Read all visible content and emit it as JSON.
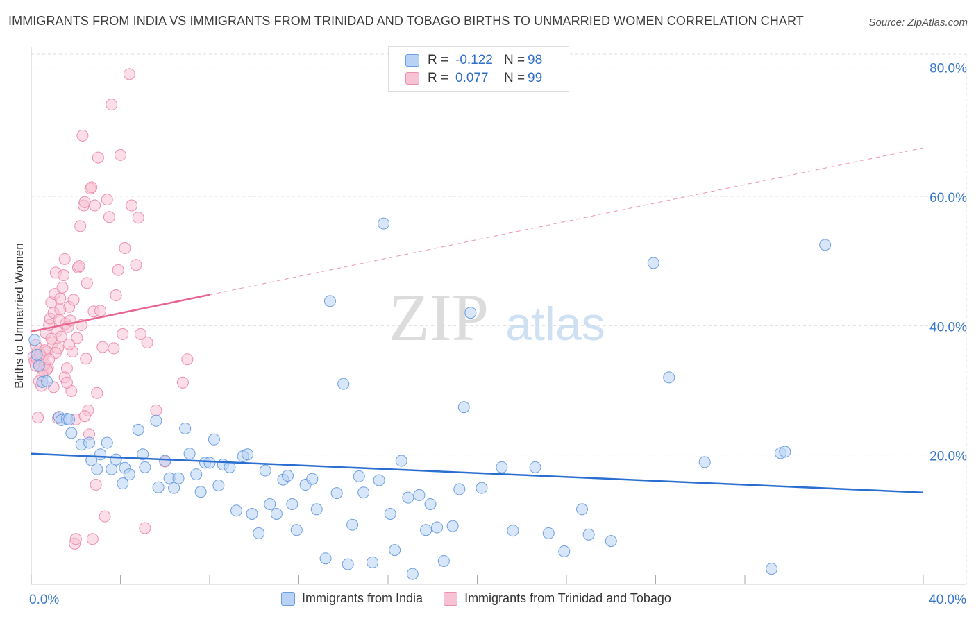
{
  "title": "IMMIGRANTS FROM INDIA VS IMMIGRANTS FROM TRINIDAD AND TOBAGO BIRTHS TO UNMARRIED WOMEN CORRELATION CHART",
  "source": "Source: ZipAtlas.com",
  "watermark": {
    "zip": "ZIP",
    "atlas": "atlas"
  },
  "legend": {
    "r_label": "R =",
    "n_label": "N =",
    "india": {
      "r": "-0.122",
      "n": "98"
    },
    "tt": {
      "r": "0.077",
      "n": "99"
    }
  },
  "colors": {
    "india_fill": "#b8d2f5",
    "india_stroke": "#6d9fe0",
    "india_line": "#2a6fd0",
    "tt_fill": "#f7c2d4",
    "tt_stroke": "#ec8fae",
    "tt_line": "#e8658f",
    "axis_text": "#3a78cc",
    "grid": "#dddddd"
  },
  "chart_data": {
    "type": "scatter",
    "title": "IMMIGRANTS FROM INDIA VS IMMIGRANTS FROM TRINIDAD AND TOBAGO BIRTHS TO UNMARRIED WOMEN CORRELATION CHART",
    "xlabel": "",
    "ylabel": "Births to Unmarried Women",
    "xlim": [
      0,
      40
    ],
    "ylim": [
      0,
      82
    ],
    "x_tick_labels": [
      {
        "v": 0,
        "label": "0.0%"
      },
      {
        "v": 40,
        "label": "40.0%"
      }
    ],
    "y_tick_labels": [
      {
        "v": 20,
        "label": "20.0%"
      },
      {
        "v": 40,
        "label": "40.0%"
      },
      {
        "v": 60,
        "label": "60.0%"
      },
      {
        "v": 80,
        "label": "80.0%"
      }
    ],
    "x_minor_ticks": [
      0,
      4,
      8,
      12,
      16,
      20,
      24,
      28,
      32,
      36,
      40
    ],
    "grid": true,
    "legend_position": "top-center",
    "series": [
      {
        "name": "Immigrants from India",
        "trend": {
          "x0": 0,
          "y0": 20.2,
          "x1": 40,
          "y1": 14.2,
          "dashed_from": null
        },
        "points": [
          [
            0.15,
            37.8
          ],
          [
            0.25,
            35.5
          ],
          [
            0.35,
            33.8
          ],
          [
            0.5,
            31.3
          ],
          [
            0.7,
            31.4
          ],
          [
            1.25,
            25.9
          ],
          [
            1.35,
            25.4
          ],
          [
            1.6,
            25.6
          ],
          [
            1.7,
            25.5
          ],
          [
            1.8,
            23.4
          ],
          [
            2.25,
            21.6
          ],
          [
            2.6,
            21.9
          ],
          [
            2.7,
            19.2
          ],
          [
            2.95,
            17.8
          ],
          [
            3.1,
            20.1
          ],
          [
            3.4,
            21.9
          ],
          [
            3.8,
            19.3
          ],
          [
            3.6,
            17.8
          ],
          [
            4.2,
            18.0
          ],
          [
            4.4,
            17.0
          ],
          [
            4.1,
            15.6
          ],
          [
            4.8,
            23.9
          ],
          [
            5.0,
            20.1
          ],
          [
            5.1,
            18.1
          ],
          [
            5.6,
            25.3
          ],
          [
            5.7,
            15.0
          ],
          [
            6.0,
            19.1
          ],
          [
            6.2,
            16.4
          ],
          [
            6.4,
            14.9
          ],
          [
            6.6,
            16.4
          ],
          [
            6.9,
            24.1
          ],
          [
            7.1,
            20.2
          ],
          [
            7.4,
            17.0
          ],
          [
            7.6,
            14.3
          ],
          [
            7.8,
            18.8
          ],
          [
            8.0,
            18.8
          ],
          [
            8.2,
            22.4
          ],
          [
            8.4,
            15.3
          ],
          [
            8.6,
            18.5
          ],
          [
            8.9,
            18.1
          ],
          [
            9.2,
            11.4
          ],
          [
            9.5,
            19.8
          ],
          [
            9.7,
            20.1
          ],
          [
            9.9,
            10.9
          ],
          [
            10.2,
            7.9
          ],
          [
            10.5,
            17.6
          ],
          [
            10.7,
            12.4
          ],
          [
            11.0,
            10.9
          ],
          [
            11.3,
            16.2
          ],
          [
            11.5,
            16.8
          ],
          [
            11.7,
            12.4
          ],
          [
            11.9,
            8.4
          ],
          [
            12.3,
            15.4
          ],
          [
            12.6,
            16.3
          ],
          [
            12.8,
            11.6
          ],
          [
            13.2,
            4.0
          ],
          [
            13.4,
            43.8
          ],
          [
            13.7,
            14.1
          ],
          [
            14.0,
            31.0
          ],
          [
            14.2,
            3.1
          ],
          [
            14.4,
            9.2
          ],
          [
            14.7,
            16.7
          ],
          [
            14.9,
            14.2
          ],
          [
            15.3,
            3.4
          ],
          [
            15.6,
            16.1
          ],
          [
            15.8,
            55.8
          ],
          [
            16.1,
            10.9
          ],
          [
            16.3,
            5.3
          ],
          [
            16.6,
            19.1
          ],
          [
            16.9,
            13.4
          ],
          [
            17.1,
            1.6
          ],
          [
            17.4,
            13.8
          ],
          [
            17.7,
            8.4
          ],
          [
            17.9,
            12.4
          ],
          [
            18.2,
            8.8
          ],
          [
            18.5,
            3.6
          ],
          [
            18.9,
            9.0
          ],
          [
            19.2,
            14.7
          ],
          [
            19.4,
            27.4
          ],
          [
            19.7,
            42.0
          ],
          [
            20.2,
            14.9
          ],
          [
            21.1,
            18.1
          ],
          [
            21.6,
            8.3
          ],
          [
            22.6,
            18.1
          ],
          [
            23.2,
            7.9
          ],
          [
            23.9,
            5.1
          ],
          [
            24.7,
            11.6
          ],
          [
            25.0,
            7.7
          ],
          [
            26.0,
            6.7
          ],
          [
            27.9,
            49.7
          ],
          [
            28.6,
            32.0
          ],
          [
            30.2,
            18.9
          ],
          [
            33.2,
            2.4
          ],
          [
            33.6,
            20.3
          ],
          [
            33.8,
            20.5
          ],
          [
            35.6,
            52.5
          ]
        ]
      },
      {
        "name": "Immigrants from Trinidad and Tobago",
        "trend": {
          "x0": 0,
          "y0": 39.1,
          "x1": 40,
          "y1": 67.5,
          "dashed_from": 8
        },
        "points": [
          [
            0.1,
            35.2
          ],
          [
            0.15,
            34.5
          ],
          [
            0.2,
            33.8
          ],
          [
            0.25,
            34.9
          ],
          [
            0.3,
            36.0
          ],
          [
            0.35,
            31.4
          ],
          [
            0.4,
            33.6
          ],
          [
            0.45,
            30.7
          ],
          [
            0.5,
            35.1
          ],
          [
            0.55,
            33.1
          ],
          [
            0.6,
            36.2
          ],
          [
            0.65,
            38.9
          ],
          [
            0.7,
            36.0
          ],
          [
            0.75,
            33.5
          ],
          [
            0.8,
            40.1
          ],
          [
            0.85,
            41.1
          ],
          [
            0.9,
            43.6
          ],
          [
            0.95,
            37.4
          ],
          [
            1.0,
            42.0
          ],
          [
            1.05,
            44.9
          ],
          [
            1.1,
            48.2
          ],
          [
            1.15,
            39.1
          ],
          [
            1.2,
            25.7
          ],
          [
            1.25,
            40.9
          ],
          [
            1.3,
            44.2
          ],
          [
            1.35,
            38.3
          ],
          [
            1.4,
            45.9
          ],
          [
            1.45,
            47.8
          ],
          [
            1.5,
            50.3
          ],
          [
            1.55,
            40.3
          ],
          [
            1.6,
            33.4
          ],
          [
            1.65,
            39.8
          ],
          [
            1.7,
            42.9
          ],
          [
            1.75,
            40.8
          ],
          [
            1.8,
            29.9
          ],
          [
            1.85,
            36.0
          ],
          [
            1.9,
            44.0
          ],
          [
            1.95,
            6.3
          ],
          [
            2.0,
            7.0
          ],
          [
            2.05,
            38.1
          ],
          [
            2.1,
            49.0
          ],
          [
            2.15,
            49.2
          ],
          [
            2.2,
            55.4
          ],
          [
            2.25,
            40.1
          ],
          [
            2.3,
            69.4
          ],
          [
            2.35,
            58.6
          ],
          [
            2.4,
            59.1
          ],
          [
            2.45,
            34.9
          ],
          [
            2.5,
            46.6
          ],
          [
            2.55,
            26.9
          ],
          [
            2.6,
            23.2
          ],
          [
            2.65,
            61.2
          ],
          [
            2.7,
            61.4
          ],
          [
            2.75,
            7.0
          ],
          [
            2.8,
            42.2
          ],
          [
            2.85,
            58.6
          ],
          [
            2.9,
            15.4
          ],
          [
            2.95,
            29.6
          ],
          [
            3.0,
            66.0
          ],
          [
            3.1,
            42.3
          ],
          [
            3.2,
            36.7
          ],
          [
            3.3,
            10.5
          ],
          [
            3.4,
            59.5
          ],
          [
            3.5,
            56.8
          ],
          [
            3.6,
            74.2
          ],
          [
            3.7,
            36.5
          ],
          [
            3.8,
            44.7
          ],
          [
            3.9,
            48.6
          ],
          [
            4.0,
            66.4
          ],
          [
            4.1,
            38.7
          ],
          [
            4.2,
            52.0
          ],
          [
            4.4,
            78.9
          ],
          [
            4.5,
            58.6
          ],
          [
            4.7,
            49.4
          ],
          [
            4.8,
            56.7
          ],
          [
            4.9,
            38.7
          ],
          [
            5.1,
            8.7
          ],
          [
            5.2,
            37.4
          ],
          [
            5.6,
            26.9
          ],
          [
            6.0,
            19.0
          ],
          [
            6.8,
            31.2
          ],
          [
            7.0,
            34.8
          ],
          [
            0.3,
            25.8
          ],
          [
            1.0,
            30.5
          ],
          [
            1.5,
            32.0
          ],
          [
            2.0,
            25.5
          ],
          [
            0.6,
            34.0
          ],
          [
            0.9,
            38.0
          ],
          [
            1.2,
            36.5
          ],
          [
            0.4,
            35.5
          ],
          [
            0.7,
            33.2
          ],
          [
            1.1,
            35.8
          ],
          [
            0.2,
            37.0
          ],
          [
            1.3,
            42.5
          ],
          [
            0.8,
            34.8
          ],
          [
            1.6,
            31.2
          ],
          [
            2.4,
            26.0
          ],
          [
            0.5,
            32.3
          ],
          [
            1.7,
            37.1
          ]
        ]
      }
    ]
  },
  "bottom_legend": {
    "india_label": "Immigrants from India",
    "tt_label": "Immigrants from Trinidad and Tobago"
  }
}
